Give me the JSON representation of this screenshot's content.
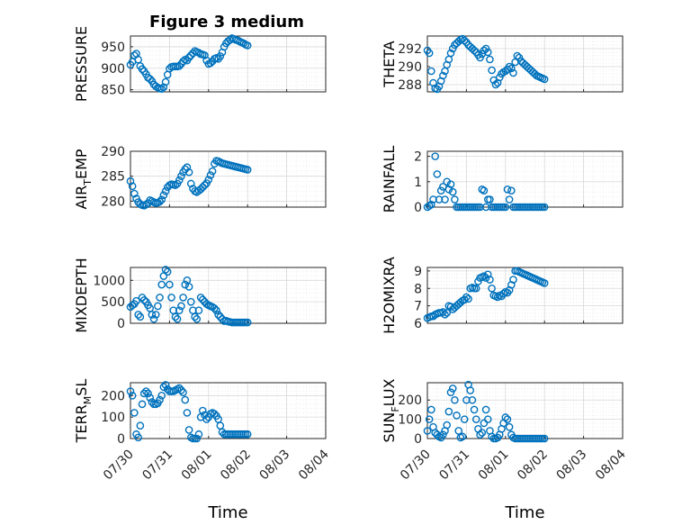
{
  "figure": {
    "title": "Figure 3 medium"
  },
  "style": {
    "marker_color": "#0072BD",
    "grid_color": "#d9d9d9",
    "axes_color": "#262626"
  },
  "chart_data": [
    {
      "type": "scatter",
      "name": "pressure",
      "ylabel": {
        "main": "PRESSURE",
        "sub": ""
      },
      "xlim": [
        "07/30",
        "08/04"
      ],
      "ylim": [
        845,
        975
      ],
      "yticks": [
        850,
        900,
        950
      ],
      "ytick_labels": [
        "850",
        "900",
        "950"
      ],
      "xtick_labels": [],
      "xlabel": "",
      "grid": true,
      "minor_grid": true,
      "x": [
        0.0,
        0.05,
        0.1,
        0.15,
        0.2,
        0.25,
        0.3,
        0.35,
        0.4,
        0.45,
        0.5,
        0.55,
        0.6,
        0.65,
        0.7,
        0.75,
        0.8,
        0.85,
        0.9,
        0.95,
        1.0,
        1.05,
        1.1,
        1.15,
        1.2,
        1.25,
        1.3,
        1.35,
        1.4,
        1.45,
        1.5,
        1.55,
        1.6,
        1.65,
        1.7,
        1.75,
        1.8,
        1.85,
        1.9,
        1.95,
        2.0,
        2.05,
        2.1,
        2.15,
        2.2,
        2.25,
        2.3,
        2.35,
        2.4,
        2.45,
        2.5,
        2.55,
        2.6,
        2.65,
        2.7,
        2.75,
        2.8,
        2.85,
        2.9,
        2.95,
        3.0
      ],
      "y": [
        908,
        915,
        930,
        934,
        920,
        905,
        898,
        893,
        886,
        878,
        875,
        870,
        862,
        858,
        855,
        853,
        852,
        856,
        868,
        885,
        899,
        903,
        904,
        904,
        904,
        905,
        910,
        916,
        920,
        918,
        925,
        930,
        935,
        940,
        938,
        936,
        933,
        932,
        930,
        918,
        910,
        912,
        916,
        922,
        924,
        922,
        928,
        937,
        950,
        958,
        963,
        966,
        970,
        968,
        966,
        965,
        962,
        960,
        958,
        955,
        953
      ]
    },
    {
      "type": "scatter",
      "name": "theta",
      "ylabel": {
        "main": "THETA",
        "sub": ""
      },
      "xlim": [
        "07/30",
        "08/04"
      ],
      "ylim": [
        287.2,
        293.4
      ],
      "yticks": [
        288,
        290,
        292
      ],
      "ytick_labels": [
        "288",
        "290",
        "292"
      ],
      "xtick_labels": [],
      "xlabel": "",
      "grid": true,
      "minor_grid": true,
      "x": [
        0.0,
        0.05,
        0.1,
        0.15,
        0.2,
        0.25,
        0.3,
        0.35,
        0.4,
        0.45,
        0.5,
        0.55,
        0.6,
        0.65,
        0.7,
        0.75,
        0.8,
        0.85,
        0.9,
        0.95,
        1.0,
        1.05,
        1.1,
        1.15,
        1.2,
        1.25,
        1.3,
        1.35,
        1.4,
        1.45,
        1.5,
        1.55,
        1.6,
        1.65,
        1.7,
        1.75,
        1.8,
        1.85,
        1.9,
        1.95,
        2.0,
        2.05,
        2.1,
        2.15,
        2.2,
        2.25,
        2.3,
        2.35,
        2.4,
        2.45,
        2.5,
        2.55,
        2.6,
        2.65,
        2.7,
        2.75,
        2.8,
        2.85,
        2.9,
        2.95,
        3.0
      ],
      "y": [
        291.8,
        291.5,
        289.5,
        288.2,
        287.6,
        287.5,
        287.8,
        288.4,
        289.0,
        289.5,
        290.2,
        290.8,
        291.5,
        292.0,
        292.4,
        292.6,
        292.8,
        293.0,
        293.1,
        292.9,
        292.7,
        292.4,
        292.2,
        292.0,
        291.8,
        291.6,
        291.3,
        291.0,
        291.4,
        291.8,
        292.0,
        291.6,
        290.8,
        289.6,
        288.5,
        288.0,
        288.2,
        288.8,
        289.2,
        289.4,
        289.5,
        289.7,
        290.0,
        289.8,
        289.3,
        290.5,
        291.2,
        291.0,
        290.6,
        290.4,
        290.2,
        290.0,
        289.8,
        289.6,
        289.4,
        289.2,
        289.0,
        288.9,
        288.8,
        288.7,
        288.6
      ]
    },
    {
      "type": "scatter",
      "name": "air-temp",
      "ylabel": {
        "main": "AIR",
        "sub": "T",
        "tail": "EMP"
      },
      "xlim": [
        "07/30",
        "08/04"
      ],
      "ylim": [
        278.8,
        290
      ],
      "yticks": [
        280,
        285,
        290
      ],
      "ytick_labels": [
        "280",
        "285",
        "290"
      ],
      "xtick_labels": [],
      "xlabel": "",
      "grid": true,
      "minor_grid": true,
      "x": [
        0.0,
        0.05,
        0.1,
        0.15,
        0.2,
        0.25,
        0.3,
        0.35,
        0.4,
        0.45,
        0.5,
        0.55,
        0.6,
        0.65,
        0.7,
        0.75,
        0.8,
        0.85,
        0.9,
        0.95,
        1.0,
        1.05,
        1.1,
        1.15,
        1.2,
        1.25,
        1.3,
        1.35,
        1.4,
        1.45,
        1.5,
        1.55,
        1.6,
        1.65,
        1.7,
        1.75,
        1.8,
        1.85,
        1.9,
        1.95,
        2.0,
        2.05,
        2.1,
        2.15,
        2.2,
        2.25,
        2.3,
        2.35,
        2.4,
        2.45,
        2.5,
        2.55,
        2.6,
        2.65,
        2.7,
        2.75,
        2.8,
        2.85,
        2.9,
        2.95,
        3.0
      ],
      "y": [
        284.0,
        283.0,
        281.5,
        280.5,
        279.8,
        279.4,
        279.2,
        279.1,
        279.3,
        279.6,
        280.2,
        280.0,
        279.8,
        279.6,
        279.7,
        279.9,
        280.3,
        281.2,
        282.0,
        282.8,
        283.2,
        283.4,
        283.3,
        283.2,
        283.5,
        284.2,
        285.0,
        285.8,
        286.4,
        286.8,
        285.8,
        283.5,
        282.5,
        282.0,
        281.8,
        282.1,
        282.4,
        282.8,
        283.2,
        283.6,
        284.3,
        285.2,
        286.0,
        287.5,
        288.1,
        288.0,
        287.8,
        287.6,
        287.5,
        287.4,
        287.3,
        287.2,
        287.1,
        287.0,
        286.9,
        286.8,
        286.7,
        286.6,
        286.5,
        286.4,
        286.3
      ]
    },
    {
      "type": "scatter",
      "name": "rainfall",
      "ylabel": {
        "main": "RAINFALL",
        "sub": ""
      },
      "xlim": [
        "07/30",
        "08/04"
      ],
      "ylim": [
        0,
        2.2
      ],
      "yticks": [
        0,
        1,
        2
      ],
      "ytick_labels": [
        "0",
        "1",
        "2"
      ],
      "xtick_labels": [],
      "xlabel": "",
      "grid": true,
      "minor_grid": true,
      "x": [
        0.0,
        0.05,
        0.1,
        0.15,
        0.2,
        0.25,
        0.3,
        0.35,
        0.4,
        0.45,
        0.5,
        0.55,
        0.6,
        0.65,
        0.7,
        0.75,
        0.8,
        0.85,
        0.9,
        0.95,
        1.0,
        1.05,
        1.1,
        1.15,
        1.2,
        1.25,
        1.3,
        1.35,
        1.4,
        1.45,
        1.5,
        1.55,
        1.6,
        1.65,
        1.7,
        1.75,
        1.8,
        1.85,
        1.9,
        1.95,
        2.0,
        2.05,
        2.1,
        2.15,
        2.2,
        2.25,
        2.3,
        2.35,
        2.4,
        2.45,
        2.5,
        2.55,
        2.6,
        2.65,
        2.7,
        2.75,
        2.8,
        2.85,
        2.9,
        2.95,
        3.0
      ],
      "y": [
        0,
        0.05,
        0.1,
        0.3,
        2.0,
        1.3,
        0.3,
        0.65,
        0.8,
        0.3,
        1.0,
        0.7,
        0.9,
        0.6,
        0.3,
        0,
        0,
        0,
        0,
        0,
        0,
        0,
        0,
        0,
        0,
        0,
        0,
        0,
        0.7,
        0.65,
        0,
        0.3,
        0.3,
        0,
        0,
        0,
        0,
        0,
        0,
        0,
        0,
        0.7,
        0.3,
        0.65,
        0,
        0,
        0,
        0,
        0,
        0,
        0,
        0,
        0,
        0,
        0,
        0,
        0,
        0,
        0,
        0,
        0
      ]
    },
    {
      "type": "scatter",
      "name": "mixdepth",
      "ylabel": {
        "main": "MIXDEPTH",
        "sub": ""
      },
      "xlim": [
        "07/30",
        "08/04"
      ],
      "ylim": [
        0,
        1300
      ],
      "yticks": [
        0,
        500,
        1000
      ],
      "ytick_labels": [
        "0",
        "500",
        "1000"
      ],
      "xtick_labels": [],
      "xlabel": "",
      "grid": true,
      "minor_grid": true,
      "x": [
        0.0,
        0.05,
        0.1,
        0.15,
        0.2,
        0.25,
        0.3,
        0.35,
        0.4,
        0.45,
        0.5,
        0.55,
        0.6,
        0.65,
        0.7,
        0.75,
        0.8,
        0.85,
        0.9,
        0.95,
        1.0,
        1.05,
        1.1,
        1.15,
        1.2,
        1.25,
        1.3,
        1.35,
        1.4,
        1.45,
        1.5,
        1.55,
        1.6,
        1.65,
        1.7,
        1.75,
        1.8,
        1.85,
        1.9,
        1.95,
        2.0,
        2.05,
        2.1,
        2.15,
        2.2,
        2.25,
        2.3,
        2.35,
        2.4,
        2.45,
        2.5,
        2.55,
        2.6,
        2.65,
        2.7,
        2.75,
        2.8,
        2.85,
        2.9,
        2.95,
        3.0
      ],
      "y": [
        380,
        420,
        450,
        520,
        200,
        150,
        600,
        540,
        500,
        420,
        350,
        200,
        100,
        200,
        400,
        600,
        900,
        1100,
        1250,
        1200,
        900,
        600,
        300,
        150,
        100,
        300,
        400,
        600,
        900,
        1000,
        850,
        500,
        300,
        150,
        100,
        300,
        600,
        550,
        500,
        450,
        420,
        400,
        380,
        350,
        300,
        200,
        150,
        100,
        50,
        60,
        40,
        30,
        20,
        20,
        20,
        20,
        20,
        20,
        20,
        20,
        20
      ]
    },
    {
      "type": "scatter",
      "name": "h2omixra",
      "ylabel": {
        "main": "H2OMIXRA",
        "sub": ""
      },
      "xlim": [
        "07/30",
        "08/04"
      ],
      "ylim": [
        6,
        9.2
      ],
      "yticks": [
        6,
        7,
        8,
        9
      ],
      "ytick_labels": [
        "6",
        "7",
        "8",
        "9"
      ],
      "xtick_labels": [],
      "xlabel": "",
      "grid": true,
      "minor_grid": true,
      "x": [
        0.0,
        0.05,
        0.1,
        0.15,
        0.2,
        0.25,
        0.3,
        0.35,
        0.4,
        0.45,
        0.5,
        0.55,
        0.6,
        0.65,
        0.7,
        0.75,
        0.8,
        0.85,
        0.9,
        0.95,
        1.0,
        1.05,
        1.1,
        1.15,
        1.2,
        1.25,
        1.3,
        1.35,
        1.4,
        1.45,
        1.5,
        1.55,
        1.6,
        1.65,
        1.7,
        1.75,
        1.8,
        1.85,
        1.9,
        1.95,
        2.0,
        2.05,
        2.1,
        2.15,
        2.2,
        2.25,
        2.3,
        2.35,
        2.4,
        2.45,
        2.5,
        2.55,
        2.6,
        2.65,
        2.7,
        2.75,
        2.8,
        2.85,
        2.9,
        2.95,
        3.0
      ],
      "y": [
        6.3,
        6.35,
        6.4,
        6.4,
        6.5,
        6.55,
        6.6,
        6.6,
        6.65,
        6.5,
        6.6,
        7.0,
        6.95,
        6.8,
        6.9,
        7.0,
        7.1,
        7.2,
        7.3,
        7.35,
        7.5,
        7.4,
        8.0,
        8.05,
        8.0,
        8.0,
        8.4,
        8.6,
        8.65,
        8.7,
        8.6,
        8.8,
        8.5,
        8.0,
        7.6,
        7.55,
        7.5,
        7.6,
        7.55,
        7.7,
        7.8,
        7.75,
        7.9,
        8.2,
        8.5,
        9.0,
        9.0,
        8.95,
        8.9,
        8.85,
        8.8,
        8.75,
        8.7,
        8.65,
        8.6,
        8.55,
        8.5,
        8.45,
        8.4,
        8.35,
        8.3
      ]
    },
    {
      "type": "scatter",
      "name": "terr-msl",
      "ylabel": {
        "main": "TERR",
        "sub": "M",
        "tail": "SL"
      },
      "xlim": [
        "07/30",
        "08/04"
      ],
      "ylim": [
        0,
        260
      ],
      "yticks": [
        0,
        100,
        200
      ],
      "ytick_labels": [
        "0",
        "100",
        "200"
      ],
      "xtick_labels": [
        "07/30",
        "07/31",
        "08/01",
        "08/02",
        "08/03",
        "08/04"
      ],
      "xlabel": "Time",
      "grid": true,
      "minor_grid": true,
      "x": [
        0.0,
        0.05,
        0.1,
        0.15,
        0.2,
        0.25,
        0.3,
        0.35,
        0.4,
        0.45,
        0.5,
        0.55,
        0.6,
        0.65,
        0.7,
        0.75,
        0.8,
        0.85,
        0.9,
        0.95,
        1.0,
        1.05,
        1.1,
        1.15,
        1.2,
        1.25,
        1.3,
        1.35,
        1.4,
        1.45,
        1.5,
        1.55,
        1.6,
        1.65,
        1.7,
        1.75,
        1.8,
        1.85,
        1.9,
        1.95,
        2.0,
        2.05,
        2.1,
        2.15,
        2.2,
        2.25,
        2.3,
        2.35,
        2.4,
        2.45,
        2.5,
        2.55,
        2.6,
        2.65,
        2.7,
        2.75,
        2.8,
        2.85,
        2.9,
        2.95,
        3.0
      ],
      "y": [
        220,
        200,
        120,
        20,
        5,
        60,
        160,
        210,
        220,
        210,
        190,
        170,
        160,
        160,
        165,
        180,
        200,
        240,
        250,
        230,
        220,
        220,
        220,
        225,
        230,
        235,
        225,
        215,
        180,
        120,
        40,
        5,
        0,
        0,
        0,
        20,
        100,
        130,
        110,
        90,
        100,
        115,
        120,
        115,
        105,
        90,
        60,
        30,
        20,
        20,
        20,
        20,
        20,
        20,
        20,
        20,
        20,
        20,
        20,
        20,
        20
      ]
    },
    {
      "type": "scatter",
      "name": "sun-flux",
      "ylabel": {
        "main": "SUN",
        "sub": "F",
        "tail": "LUX"
      },
      "xlim": [
        "07/30",
        "08/04"
      ],
      "ylim": [
        0,
        290
      ],
      "yticks": [
        0,
        100,
        200
      ],
      "ytick_labels": [
        "0",
        "100",
        "200"
      ],
      "xtick_labels": [
        "07/30",
        "07/31",
        "08/01",
        "08/02",
        "08/03",
        "08/04"
      ],
      "xlabel": "Time",
      "grid": true,
      "minor_grid": true,
      "x": [
        0.0,
        0.05,
        0.1,
        0.15,
        0.2,
        0.25,
        0.3,
        0.35,
        0.4,
        0.45,
        0.5,
        0.55,
        0.6,
        0.65,
        0.7,
        0.75,
        0.8,
        0.85,
        0.9,
        0.95,
        1.0,
        1.05,
        1.1,
        1.15,
        1.2,
        1.25,
        1.3,
        1.35,
        1.4,
        1.45,
        1.5,
        1.55,
        1.6,
        1.65,
        1.7,
        1.75,
        1.8,
        1.85,
        1.9,
        1.95,
        2.0,
        2.05,
        2.1,
        2.15,
        2.2,
        2.25,
        2.3,
        2.35,
        2.4,
        2.45,
        2.5,
        2.55,
        2.6,
        2.65,
        2.7,
        2.75,
        2.8,
        2.85,
        2.9,
        2.95,
        3.0
      ],
      "y": [
        40,
        100,
        150,
        60,
        30,
        20,
        10,
        5,
        20,
        40,
        70,
        140,
        240,
        260,
        200,
        120,
        40,
        5,
        10,
        100,
        200,
        280,
        250,
        200,
        150,
        100,
        50,
        20,
        30,
        80,
        150,
        100,
        40,
        10,
        0,
        0,
        5,
        20,
        50,
        80,
        110,
        100,
        60,
        20,
        5,
        0,
        0,
        0,
        0,
        0,
        0,
        0,
        0,
        0,
        0,
        0,
        0,
        0,
        0,
        0,
        0
      ]
    }
  ]
}
